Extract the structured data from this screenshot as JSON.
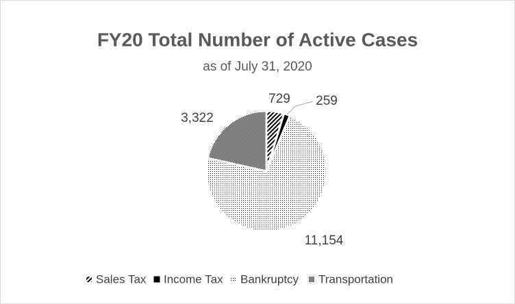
{
  "chart_data": {
    "type": "pie",
    "title": "FY20 Total Number of Active Cases",
    "subtitle": "as of July 31, 2020",
    "categories": [
      "Sales Tax",
      "Income Tax",
      "Bankruptcy",
      "Transportation"
    ],
    "values": [
      729,
      259,
      11154,
      3322
    ],
    "value_labels": [
      "729",
      "259",
      "11,154",
      "3,322"
    ],
    "color": "#000000",
    "legend": "bottom"
  }
}
